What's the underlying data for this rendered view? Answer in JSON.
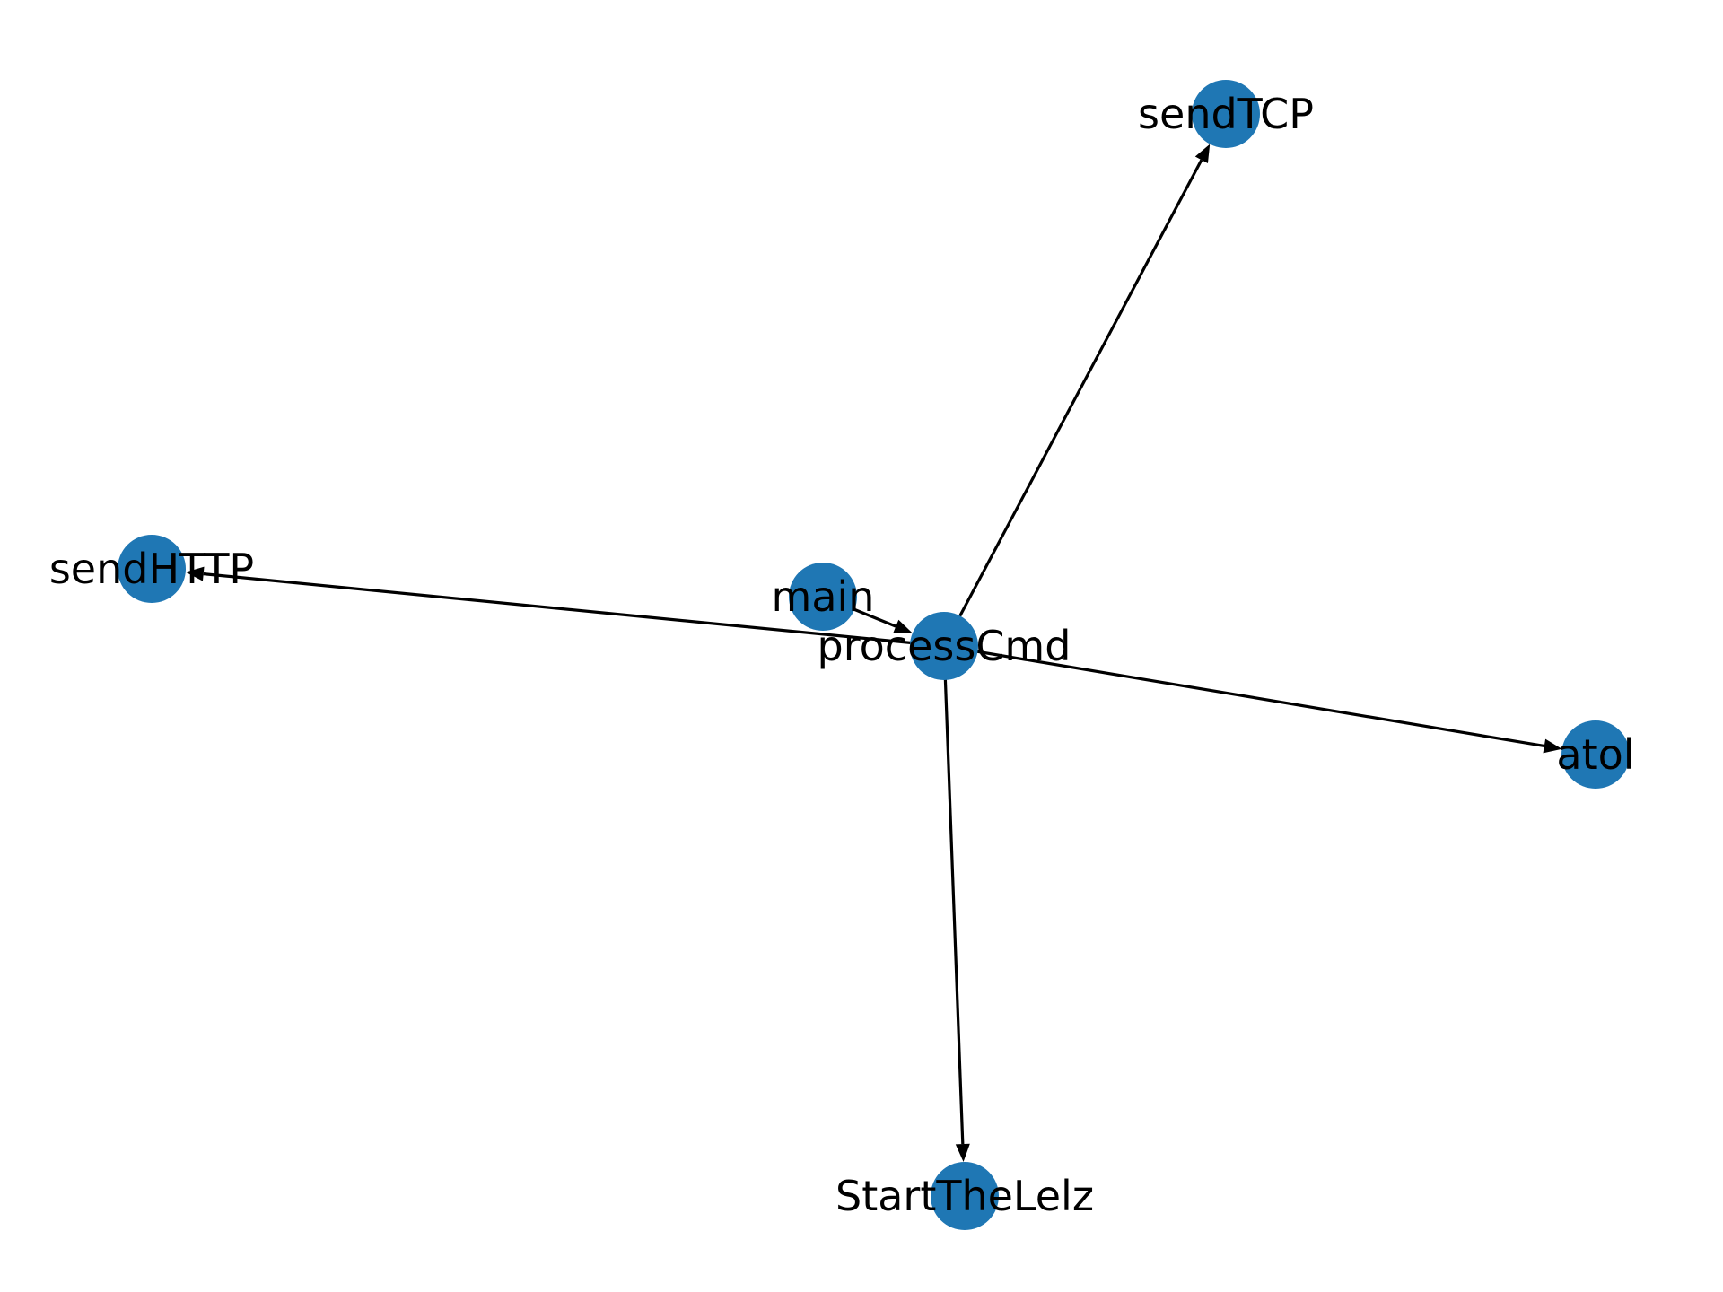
{
  "diagram": {
    "type": "directed-graph",
    "colors": {
      "background": "#ffffff",
      "node_fill": "#1f77b4",
      "edge": "#000000",
      "label": "#000000"
    },
    "nodes": [
      {
        "id": "main",
        "label": "main"
      },
      {
        "id": "processCmd",
        "label": "processCmd"
      },
      {
        "id": "sendTCP",
        "label": "sendTCP"
      },
      {
        "id": "sendHTTP",
        "label": "sendHTTP"
      },
      {
        "id": "atol",
        "label": "atol"
      },
      {
        "id": "StartTheLelz",
        "label": "StartTheLelz"
      }
    ],
    "edges": [
      {
        "source": "main",
        "target": "processCmd"
      },
      {
        "source": "processCmd",
        "target": "sendTCP"
      },
      {
        "source": "processCmd",
        "target": "sendHTTP"
      },
      {
        "source": "processCmd",
        "target": "atol"
      },
      {
        "source": "processCmd",
        "target": "StartTheLelz"
      }
    ]
  }
}
